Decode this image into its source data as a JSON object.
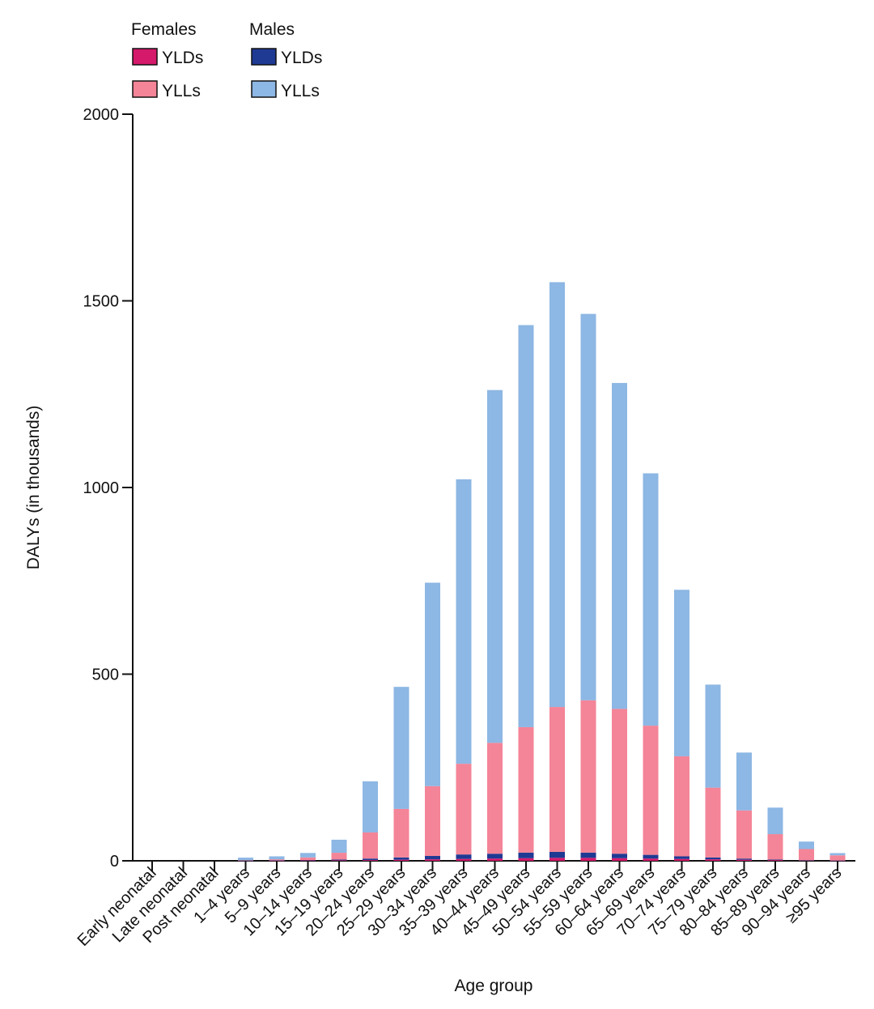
{
  "chart_data": {
    "type": "bar",
    "stacked": true,
    "xlabel": "Age group",
    "ylabel": "DALYs (in thousands)",
    "ylim": [
      0,
      2000
    ],
    "yticks": [
      0,
      500,
      1000,
      1500,
      2000
    ],
    "grid": false,
    "legend_placement": "top-left",
    "legend_groups": [
      "Females",
      "Males"
    ],
    "categories": [
      "Early neonatal",
      "Late neonatal",
      "Post neonatal",
      "1–4 years",
      "5–9 years",
      "10–14 years",
      "15–19 years",
      "20–24 years",
      "25–29 years",
      "30–34 years",
      "35–39 years",
      "40–44 years",
      "45–49 years",
      "50–54 years",
      "55–59 years",
      "60–64 years",
      "65–69 years",
      "70–74 years",
      "75–79 years",
      "80–84 years",
      "85–89 years",
      "90–94 years",
      "≥95 years"
    ],
    "series": [
      {
        "name": "YLDs",
        "group": "Females",
        "color": "#d5196b",
        "values": [
          0,
          0,
          0,
          0.2,
          0.5,
          1,
          1.5,
          2,
          3,
          4,
          5,
          6,
          7,
          8,
          8,
          7,
          6,
          5,
          4,
          3,
          2,
          1,
          0.5
        ]
      },
      {
        "name": "YLDs",
        "group": "Males",
        "color": "#1f3a93",
        "values": [
          0,
          0,
          0,
          0.3,
          0.5,
          1,
          2,
          4,
          6,
          9,
          12,
          13,
          15,
          16,
          14,
          12,
          10,
          7,
          5,
          3,
          1.5,
          0.5,
          0.2
        ]
      },
      {
        "name": "YLLs",
        "group": "Females",
        "color": "#f48497",
        "values": [
          0,
          0,
          0,
          1,
          3,
          7,
          18,
          70,
          130,
          187,
          243,
          297,
          336,
          388,
          408,
          388,
          346,
          268,
          187,
          129,
          68,
          30,
          14
        ]
      },
      {
        "name": "YLLs",
        "group": "Males",
        "color": "#8db7e4",
        "values": [
          0,
          0,
          0,
          7,
          8,
          12,
          35,
          137,
          327,
          545,
          762,
          945,
          1077,
          1138,
          1035,
          873,
          676,
          446,
          276,
          155,
          71,
          20,
          6
        ]
      }
    ]
  }
}
